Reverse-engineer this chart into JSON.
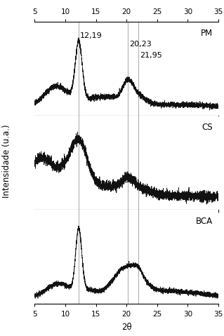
{
  "xlim": [
    5,
    35
  ],
  "xticks": [
    5,
    10,
    15,
    20,
    25,
    30,
    35
  ],
  "vlines": [
    12.19,
    20.23,
    21.95
  ],
  "vline_labels": [
    "12,19",
    "20,23",
    "21,95"
  ],
  "panel_labels": [
    "PM",
    "CS",
    "BCA"
  ],
  "xlabel": "2θ",
  "ylabel": "Intensidade (u.a.)",
  "background_color": "#ffffff",
  "line_color": "#111111",
  "vline_color": "#aaaaaa",
  "seed": 12345
}
